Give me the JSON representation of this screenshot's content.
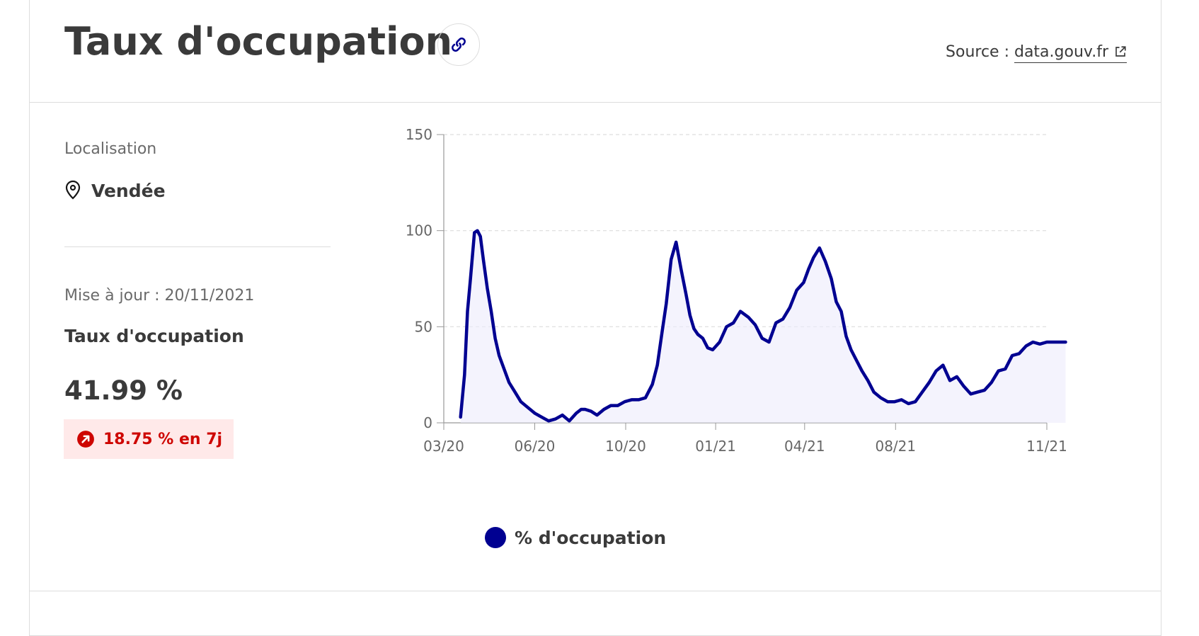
{
  "header": {
    "title": "Taux d'occupation",
    "source_prefix": "Source :",
    "source_link": "data.gouv.fr"
  },
  "location": {
    "label": "Localisation",
    "value": "Vendée"
  },
  "metric": {
    "updated": "Mise à jour : 20/11/2021",
    "title": "Taux d'occupation",
    "value": "41.99 %",
    "change": "18.75 % en 7j"
  },
  "legend": {
    "label": "% d'occupation"
  },
  "colors": {
    "series": "#000091",
    "fill": "#ecebfb",
    "badge_bg": "#ffe9e9",
    "badge_text": "#ce0500",
    "grid": "#dddddd",
    "axis_text": "#666666"
  },
  "icons": [
    "link-icon",
    "external-link-icon",
    "map-pin-icon",
    "arrow-up-right-icon"
  ],
  "chart_data": {
    "type": "area",
    "title": "",
    "xlabel": "",
    "ylabel": "",
    "ylim": [
      0,
      150
    ],
    "yticks": [
      0,
      50,
      100,
      150
    ],
    "xticks": [
      "03/20",
      "06/20",
      "10/20",
      "01/21",
      "04/21",
      "08/21",
      "11/21"
    ],
    "grid": true,
    "legend_position": "bottom-left",
    "series": [
      {
        "name": "% d'occupation",
        "x": [
          "2020-03-18",
          "2020-03-22",
          "2020-03-25",
          "2020-03-28",
          "2020-04-01",
          "2020-04-04",
          "2020-04-07",
          "2020-04-10",
          "2020-04-14",
          "2020-04-18",
          "2020-04-22",
          "2020-04-26",
          "2020-05-01",
          "2020-05-06",
          "2020-05-12",
          "2020-05-18",
          "2020-05-25",
          "2020-06-01",
          "2020-06-08",
          "2020-06-15",
          "2020-06-22",
          "2020-06-29",
          "2020-07-06",
          "2020-07-13",
          "2020-07-18",
          "2020-07-22",
          "2020-07-28",
          "2020-08-03",
          "2020-08-10",
          "2020-08-17",
          "2020-08-24",
          "2020-08-31",
          "2020-09-07",
          "2020-09-14",
          "2020-09-21",
          "2020-09-28",
          "2020-10-03",
          "2020-10-08",
          "2020-10-12",
          "2020-10-17",
          "2020-10-22",
          "2020-10-27",
          "2020-11-01",
          "2020-11-05",
          "2020-11-09",
          "2020-11-13",
          "2020-11-18",
          "2020-11-23",
          "2020-11-28",
          "2020-12-05",
          "2020-12-12",
          "2020-12-19",
          "2020-12-26",
          "2021-01-03",
          "2021-01-10",
          "2021-01-17",
          "2021-01-24",
          "2021-01-31",
          "2021-02-07",
          "2021-02-14",
          "2021-02-21",
          "2021-02-28",
          "2021-03-05",
          "2021-03-10",
          "2021-03-16",
          "2021-03-22",
          "2021-03-28",
          "2021-04-02",
          "2021-04-07",
          "2021-04-12",
          "2021-04-17",
          "2021-04-22",
          "2021-04-28",
          "2021-05-04",
          "2021-05-10",
          "2021-05-17",
          "2021-05-24",
          "2021-05-31",
          "2021-06-07",
          "2021-06-14",
          "2021-06-21",
          "2021-06-28",
          "2021-07-05",
          "2021-07-12",
          "2021-07-19",
          "2021-07-26",
          "2021-08-02",
          "2021-08-09",
          "2021-08-16",
          "2021-08-23",
          "2021-08-30",
          "2021-09-06",
          "2021-09-13",
          "2021-09-20",
          "2021-09-27",
          "2021-10-04",
          "2021-10-11",
          "2021-10-18",
          "2021-10-25",
          "2021-11-01",
          "2021-11-08",
          "2021-11-14",
          "2021-11-20"
        ],
        "values": [
          3,
          25,
          58,
          75,
          99,
          100,
          97,
          85,
          70,
          58,
          44,
          35,
          28,
          21,
          16,
          11,
          8,
          5,
          3,
          1,
          2,
          4,
          1,
          5,
          7,
          7,
          6,
          4,
          7,
          9,
          9,
          11,
          12,
          12,
          13,
          20,
          30,
          48,
          62,
          85,
          94,
          80,
          67,
          56,
          49,
          46,
          44,
          39,
          38,
          42,
          50,
          52,
          58,
          55,
          51,
          44,
          42,
          52,
          54,
          60,
          69,
          73,
          80,
          86,
          91,
          84,
          75,
          63,
          58,
          45,
          38,
          33,
          27,
          22,
          16,
          13,
          11,
          11,
          12,
          10,
          11,
          16,
          21,
          27,
          30,
          22,
          24,
          19,
          15,
          16,
          17,
          21,
          27,
          28,
          35,
          36,
          40,
          42,
          41,
          42,
          42,
          42,
          42
        ]
      }
    ]
  }
}
